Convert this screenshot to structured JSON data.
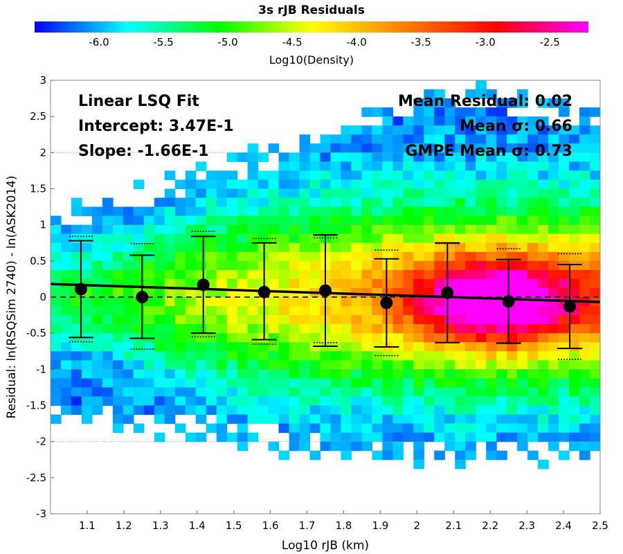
{
  "chart_data": {
    "type": "heatmap",
    "title": "3s rJB Residuals",
    "xlabel": "Log10 rJB (km)",
    "ylabel": "Residual: ln(RSQSim 2740) - ln(ASK2014)",
    "xlim": [
      1.0,
      2.5
    ],
    "ylim": [
      -3,
      3
    ],
    "xticks": [
      "1.1",
      "1.2",
      "1.3",
      "1.4",
      "1.5",
      "1.6",
      "1.7",
      "1.8",
      "1.9",
      "2",
      "2.1",
      "2.2",
      "2.3",
      "2.4",
      "2.5"
    ],
    "yticks": [
      "3",
      "2.5",
      "2",
      "1.5",
      "1",
      "0.5",
      "0",
      "-0.5",
      "-1",
      "-1.5",
      "-2",
      "-2.5",
      "-3"
    ],
    "grid": true,
    "colorbar": {
      "label": "Log10(Density)",
      "range": [
        -6.5,
        -2.2
      ],
      "ticks": [
        "-6.0",
        "-5.5",
        "-5.0",
        "-4.5",
        "-4.0",
        "-3.5",
        "-3.0",
        "-2.5"
      ],
      "colors": [
        "#0000ff",
        "#00ffff",
        "#00ff00",
        "#ffff00",
        "#ff8000",
        "#ff0000",
        "#ff00ff"
      ]
    },
    "fit": {
      "label": "Linear LSQ Fit",
      "intercept_text": "Intercept: 3.47E-1",
      "slope_text": "Slope: -1.66E-1",
      "intercept": 0.347,
      "slope": -0.166
    },
    "stats": {
      "mean_residual": "Mean Residual: 0.02",
      "mean_sigma": "Mean σ: 0.66",
      "gmpe_sigma": "GMPE Mean σ: 0.73"
    },
    "bin_means": [
      {
        "x": 1.083,
        "mean": 0.11,
        "lo": -0.56,
        "hi": 0.78,
        "gmpe_lo": -0.62,
        "gmpe_hi": 0.84
      },
      {
        "x": 1.25,
        "mean": 0.0,
        "lo": -0.57,
        "hi": 0.58,
        "gmpe_lo": -0.72,
        "gmpe_hi": 0.74
      },
      {
        "x": 1.417,
        "mean": 0.17,
        "lo": -0.5,
        "hi": 0.84,
        "gmpe_lo": -0.55,
        "gmpe_hi": 0.91
      },
      {
        "x": 1.583,
        "mean": 0.07,
        "lo": -0.59,
        "hi": 0.75,
        "gmpe_lo": -0.65,
        "gmpe_hi": 0.81
      },
      {
        "x": 1.75,
        "mean": 0.09,
        "lo": -0.68,
        "hi": 0.86,
        "gmpe_lo": -0.63,
        "gmpe_hi": 0.82
      },
      {
        "x": 1.917,
        "mean": -0.08,
        "lo": -0.69,
        "hi": 0.53,
        "gmpe_lo": -0.81,
        "gmpe_hi": 0.65
      },
      {
        "x": 2.083,
        "mean": 0.06,
        "lo": -0.63,
        "hi": 0.75,
        "gmpe_lo": -0.63,
        "gmpe_hi": 0.74
      },
      {
        "x": 2.25,
        "mean": -0.06,
        "lo": -0.64,
        "hi": 0.52,
        "gmpe_lo": -0.63,
        "gmpe_hi": 0.67
      },
      {
        "x": 2.417,
        "mean": -0.13,
        "lo": -0.71,
        "hi": 0.45,
        "gmpe_lo": -0.86,
        "gmpe_hi": 0.6
      }
    ]
  }
}
